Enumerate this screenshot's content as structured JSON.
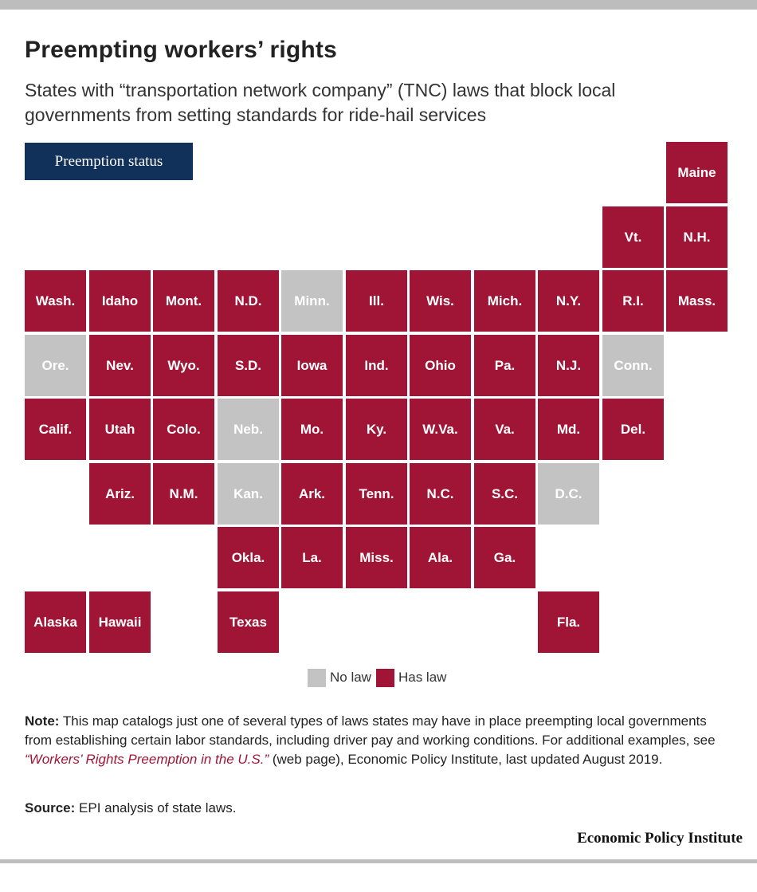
{
  "header": {
    "title": "Preempting workers’ rights",
    "subtitle": "States with “transportation network company” (TNC) laws that block local governments from setting standards for ride-hail services"
  },
  "legend_tab": {
    "label": "Preemption status"
  },
  "legend": {
    "items": [
      {
        "key": "no",
        "label": "No law",
        "color": "#c3c3c3"
      },
      {
        "key": "has",
        "label": "Has law",
        "color": "#a01536"
      }
    ]
  },
  "map": {
    "tiles": [
      {
        "label": "Maine",
        "status": "has",
        "col": 10,
        "row": 0
      },
      {
        "label": "Vt.",
        "status": "has",
        "col": 9,
        "row": 1
      },
      {
        "label": "N.H.",
        "status": "has",
        "col": 10,
        "row": 1
      },
      {
        "label": "Wash.",
        "status": "has",
        "col": 0,
        "row": 2
      },
      {
        "label": "Idaho",
        "status": "has",
        "col": 1,
        "row": 2
      },
      {
        "label": "Mont.",
        "status": "has",
        "col": 2,
        "row": 2
      },
      {
        "label": "N.D.",
        "status": "has",
        "col": 3,
        "row": 2
      },
      {
        "label": "Minn.",
        "status": "no",
        "col": 4,
        "row": 2
      },
      {
        "label": "Ill.",
        "status": "has",
        "col": 5,
        "row": 2
      },
      {
        "label": "Wis.",
        "status": "has",
        "col": 6,
        "row": 2
      },
      {
        "label": "Mich.",
        "status": "has",
        "col": 7,
        "row": 2
      },
      {
        "label": "N.Y.",
        "status": "has",
        "col": 8,
        "row": 2
      },
      {
        "label": "R.I.",
        "status": "has",
        "col": 9,
        "row": 2
      },
      {
        "label": "Mass.",
        "status": "has",
        "col": 10,
        "row": 2
      },
      {
        "label": "Ore.",
        "status": "no",
        "col": 0,
        "row": 3
      },
      {
        "label": "Nev.",
        "status": "has",
        "col": 1,
        "row": 3
      },
      {
        "label": "Wyo.",
        "status": "has",
        "col": 2,
        "row": 3
      },
      {
        "label": "S.D.",
        "status": "has",
        "col": 3,
        "row": 3
      },
      {
        "label": "Iowa",
        "status": "has",
        "col": 4,
        "row": 3
      },
      {
        "label": "Ind.",
        "status": "has",
        "col": 5,
        "row": 3
      },
      {
        "label": "Ohio",
        "status": "has",
        "col": 6,
        "row": 3
      },
      {
        "label": "Pa.",
        "status": "has",
        "col": 7,
        "row": 3
      },
      {
        "label": "N.J.",
        "status": "has",
        "col": 8,
        "row": 3
      },
      {
        "label": "Conn.",
        "status": "no",
        "col": 9,
        "row": 3
      },
      {
        "label": "Calif.",
        "status": "has",
        "col": 0,
        "row": 4
      },
      {
        "label": "Utah",
        "status": "has",
        "col": 1,
        "row": 4
      },
      {
        "label": "Colo.",
        "status": "has",
        "col": 2,
        "row": 4
      },
      {
        "label": "Neb.",
        "status": "no",
        "col": 3,
        "row": 4
      },
      {
        "label": "Mo.",
        "status": "has",
        "col": 4,
        "row": 4
      },
      {
        "label": "Ky.",
        "status": "has",
        "col": 5,
        "row": 4
      },
      {
        "label": "W.Va.",
        "status": "has",
        "col": 6,
        "row": 4
      },
      {
        "label": "Va.",
        "status": "has",
        "col": 7,
        "row": 4
      },
      {
        "label": "Md.",
        "status": "has",
        "col": 8,
        "row": 4
      },
      {
        "label": "Del.",
        "status": "has",
        "col": 9,
        "row": 4
      },
      {
        "label": "Ariz.",
        "status": "has",
        "col": 1,
        "row": 5
      },
      {
        "label": "N.M.",
        "status": "has",
        "col": 2,
        "row": 5
      },
      {
        "label": "Kan.",
        "status": "no",
        "col": 3,
        "row": 5
      },
      {
        "label": "Ark.",
        "status": "has",
        "col": 4,
        "row": 5
      },
      {
        "label": "Tenn.",
        "status": "has",
        "col": 5,
        "row": 5
      },
      {
        "label": "N.C.",
        "status": "has",
        "col": 6,
        "row": 5
      },
      {
        "label": "S.C.",
        "status": "has",
        "col": 7,
        "row": 5
      },
      {
        "label": "D.C.",
        "status": "no",
        "col": 8,
        "row": 5
      },
      {
        "label": "Okla.",
        "status": "has",
        "col": 3,
        "row": 6
      },
      {
        "label": "La.",
        "status": "has",
        "col": 4,
        "row": 6
      },
      {
        "label": "Miss.",
        "status": "has",
        "col": 5,
        "row": 6
      },
      {
        "label": "Ala.",
        "status": "has",
        "col": 6,
        "row": 6
      },
      {
        "label": "Ga.",
        "status": "has",
        "col": 7,
        "row": 6
      },
      {
        "label": "Alaska",
        "status": "has",
        "col": 0,
        "row": 7
      },
      {
        "label": "Hawaii",
        "status": "has",
        "col": 1,
        "row": 7
      },
      {
        "label": "Texas",
        "status": "has",
        "col": 3,
        "row": 7
      },
      {
        "label": "Fla.",
        "status": "has",
        "col": 8,
        "row": 7
      }
    ]
  },
  "note": {
    "label": "Note:",
    "text_before": " This map catalogs just one of several types of laws states may have in place preempting local governments from establishing certain labor standards, including driver pay and working conditions. For additional examples, see ",
    "link_text": "“Workers’ Rights Preemption in the U.S.”",
    "text_after": " (web page), Economic Policy Institute, last updated August 2019."
  },
  "source": {
    "label": "Source:",
    "text": " EPI analysis of state laws."
  },
  "brand": "Economic Policy Institute",
  "colors": {
    "has_law": "#a01536",
    "no_law": "#c3c3c3",
    "legend_tab": "#12315a"
  }
}
